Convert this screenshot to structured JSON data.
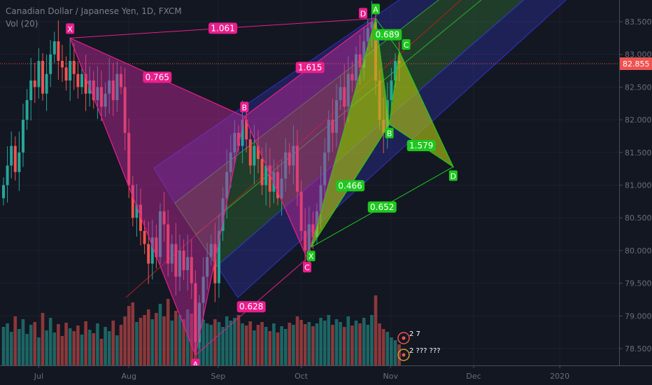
{
  "header": {
    "title": "Canadian Dollar / Japanese Yen, 1D, FXCM",
    "indicator": "Vol (20)"
  },
  "colors": {
    "background": "#131722",
    "up": "#26a69a",
    "down": "#ef5350",
    "pink_pattern": "#e91e8c",
    "green_pattern": "#1ec81e",
    "price_tag": "#ef5350"
  },
  "chart_data": {
    "type": "candlestick",
    "symbol": "CADJPY",
    "interval": "1D",
    "price_axis_ticks": [
      "83.500",
      "83.000",
      "82.500",
      "82.000",
      "81.500",
      "81.000",
      "80.500",
      "80.000",
      "79.500",
      "79.000",
      "78.500"
    ],
    "ylim": [
      78.25,
      83.75
    ],
    "time_axis_ticks": [
      {
        "label": "Jul",
        "bar": 9
      },
      {
        "label": "Aug",
        "bar": 32
      },
      {
        "label": "Sep",
        "bar": 54.8
      },
      {
        "label": "Oct",
        "bar": 76
      },
      {
        "label": "Nov",
        "bar": 98.8
      },
      {
        "label": "Dec",
        "bar": 120
      },
      {
        "label": "2020",
        "bar": 142
      }
    ],
    "last_price": "82.855",
    "start_open": 80.8,
    "closes": [
      81.0,
      81.3,
      81.6,
      81.2,
      81.5,
      82.0,
      82.3,
      82.6,
      82.5,
      82.9,
      82.4,
      82.7,
      83.0,
      83.2,
      82.9,
      82.8,
      82.6,
      82.9,
      82.7,
      82.5,
      82.7,
      82.4,
      82.6,
      82.3,
      82.5,
      82.2,
      82.4,
      82.6,
      82.3,
      82.7,
      82.5,
      81.8,
      81.0,
      80.5,
      80.7,
      80.3,
      80.1,
      79.8,
      80.2,
      79.9,
      80.6,
      80.4,
      79.8,
      80.1,
      79.6,
      80.0,
      79.7,
      79.9,
      79.5,
      78.6,
      79.2,
      79.6,
      79.9,
      80.1,
      79.5,
      80.3,
      80.8,
      81.2,
      81.5,
      81.8,
      81.6,
      82.0,
      81.7,
      81.3,
      81.6,
      81.4,
      81.0,
      81.3,
      80.9,
      81.2,
      80.8,
      81.1,
      81.5,
      81.3,
      81.6,
      80.9,
      80.3,
      80.0,
      80.4,
      80.2,
      80.6,
      81.0,
      81.5,
      82.0,
      81.8,
      82.3,
      82.5,
      82.2,
      82.7,
      82.6,
      83.0,
      82.8,
      83.2,
      83.4,
      83.5,
      82.6,
      82.0,
      81.8,
      82.3,
      82.6,
      82.9,
      82.855
    ],
    "volumes": [
      55,
      60,
      48,
      70,
      52,
      66,
      45,
      58,
      62,
      40,
      75,
      50,
      68,
      47,
      59,
      42,
      61,
      53,
      49,
      57,
      44,
      63,
      51,
      46,
      60,
      38,
      55,
      49,
      64,
      43,
      58,
      70,
      85,
      90,
      62,
      68,
      72,
      80,
      66,
      75,
      88,
      70,
      95,
      64,
      78,
      72,
      66,
      80,
      74,
      92,
      70,
      65,
      60,
      58,
      66,
      62,
      55,
      70,
      64,
      68,
      72,
      60,
      57,
      63,
      50,
      58,
      62,
      55,
      49,
      60,
      47,
      56,
      52,
      61,
      58,
      70,
      65,
      59,
      62,
      56,
      60,
      68,
      64,
      72,
      58,
      66,
      62,
      55,
      70,
      57,
      64,
      60,
      68,
      58,
      72,
      100,
      60,
      52,
      48,
      40,
      36,
      30
    ]
  },
  "drawings": {
    "pink_pattern": {
      "points": [
        {
          "label": "X",
          "bar": 17,
          "price": 83.25
        },
        {
          "label": "A",
          "bar": 49,
          "price": 78.4
        },
        {
          "label": "B",
          "bar": 61.5,
          "price": 82.05
        },
        {
          "label": "C",
          "bar": 77.5,
          "price": 79.88
        },
        {
          "label": "D",
          "bar": 95,
          "price": 83.55
        }
      ],
      "ratios": {
        "XB": "0.765",
        "AC": "0.628",
        "BD": "1.615",
        "XD": "1.061"
      }
    },
    "green_pattern": {
      "points": [
        {
          "label": "X",
          "bar": 78.5,
          "price": 80.05
        },
        {
          "label": "A",
          "bar": 95,
          "price": 83.55
        },
        {
          "label": "B",
          "bar": 98.5,
          "price": 81.93
        },
        {
          "label": "C",
          "bar": 101,
          "price": 83.05
        },
        {
          "label": "D",
          "bar": 114.8,
          "price": 81.28
        }
      ],
      "ratios": {
        "XB": "0.466",
        "AC": "0.689",
        "BD": "1.579",
        "XD": "0.652"
      }
    }
  },
  "events": [
    {
      "icon": "earnings-icon",
      "text": "2 7",
      "color": "#ef5350"
    },
    {
      "icon": "dividend-icon",
      "text": "2 ??? ???",
      "color": "#c9a227"
    }
  ]
}
